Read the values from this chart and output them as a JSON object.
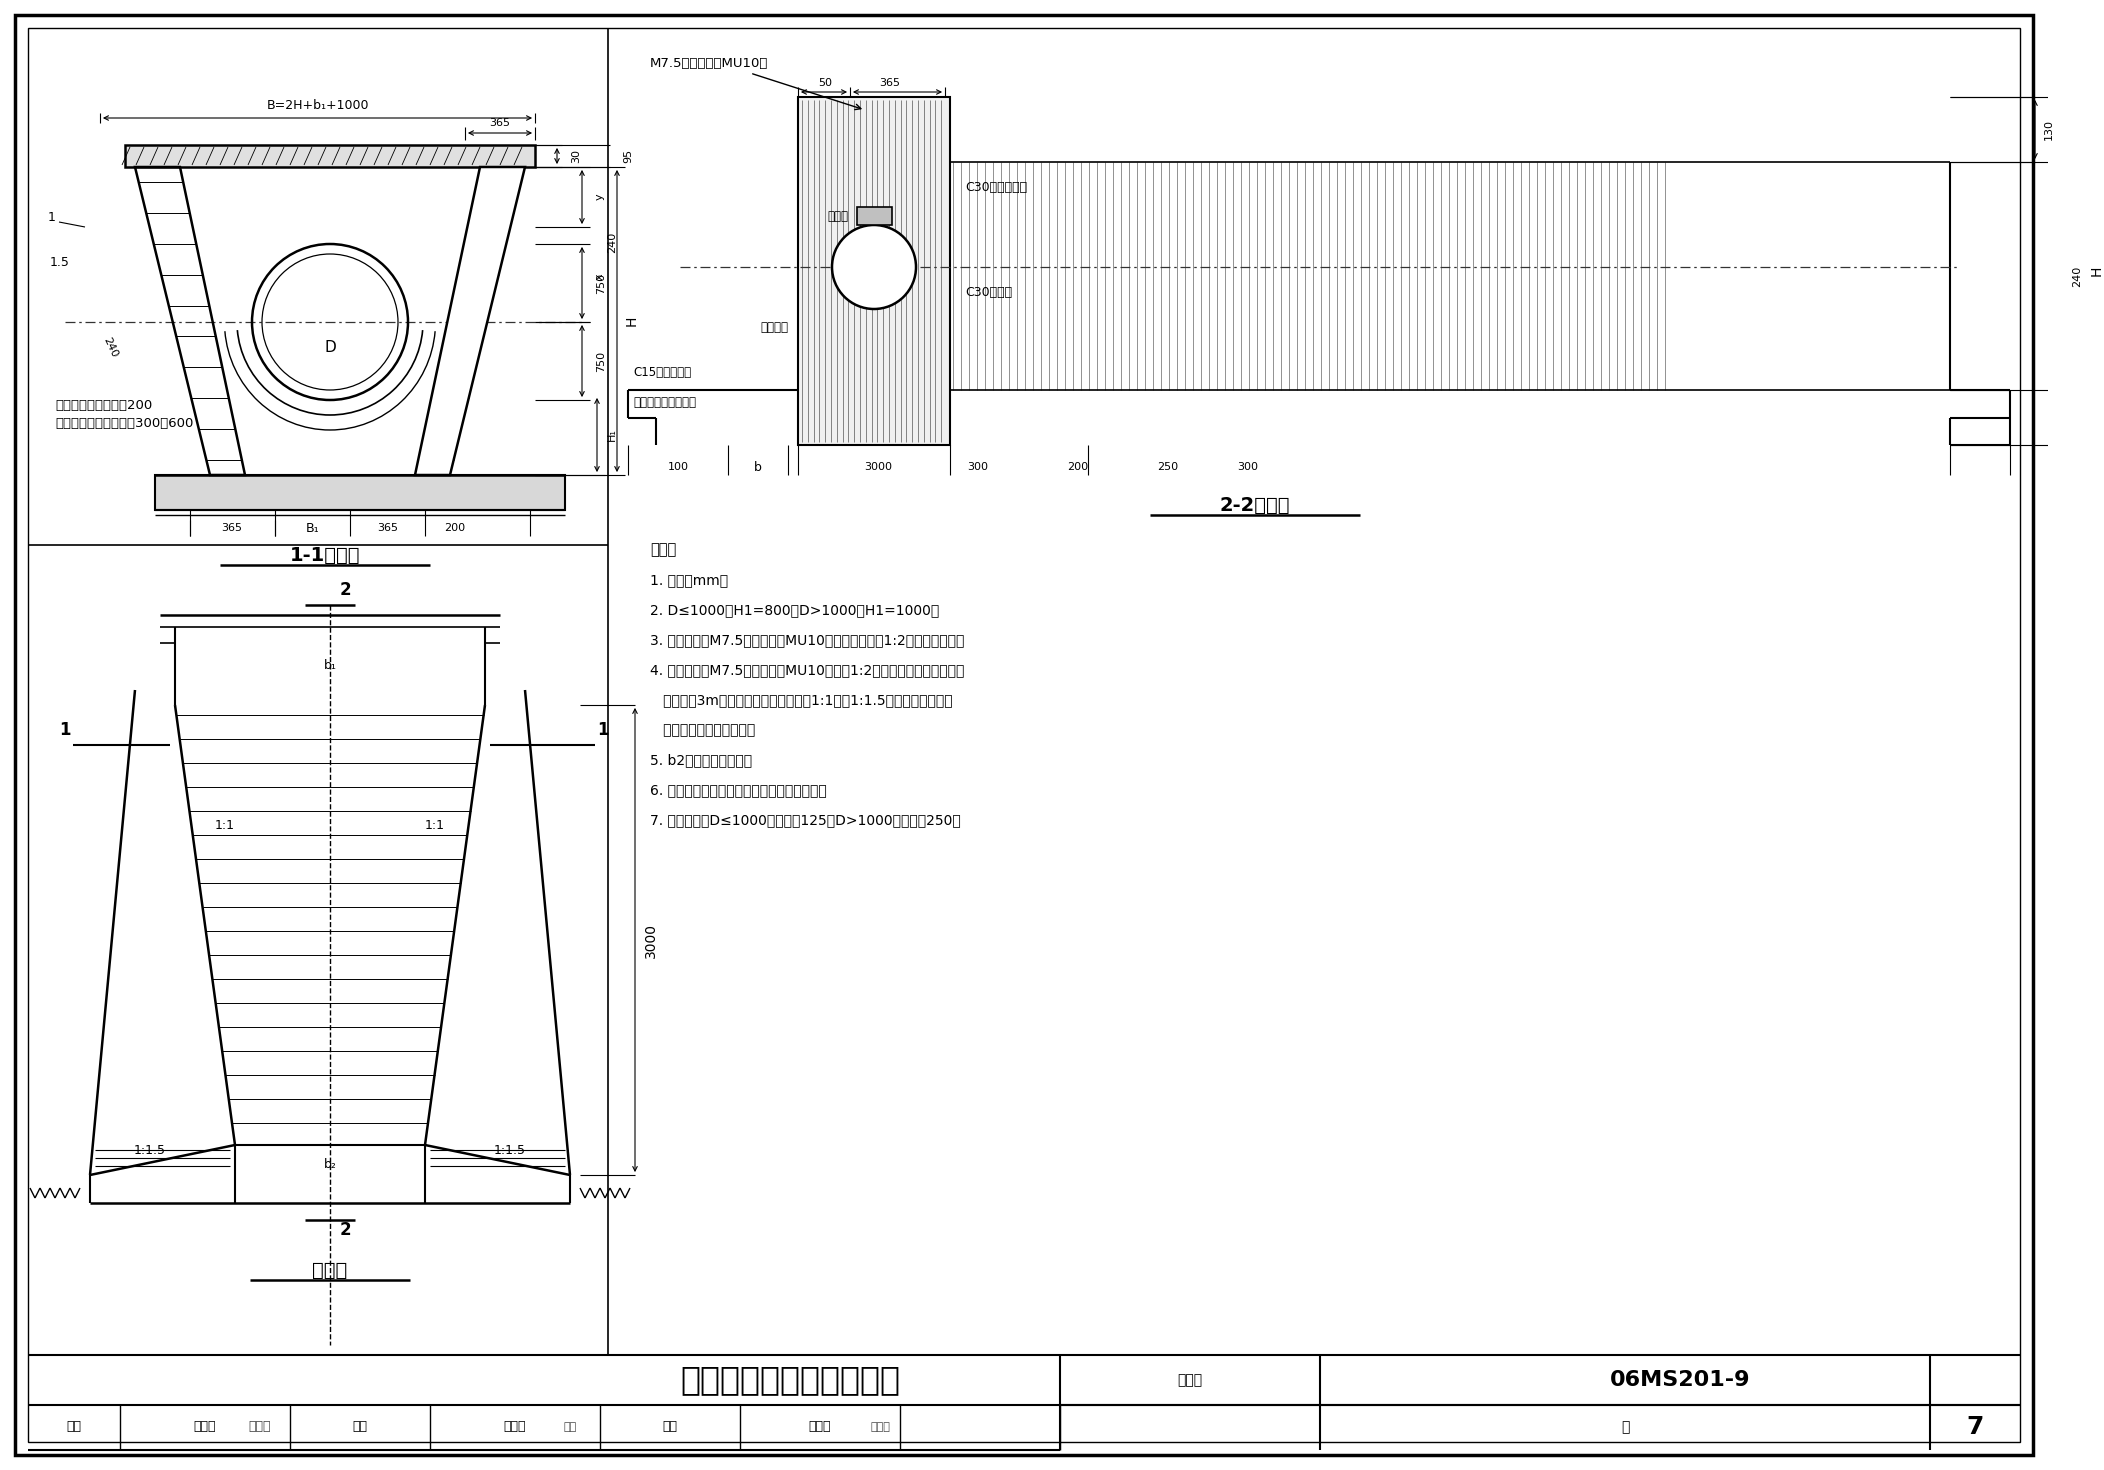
{
  "title": "一字式管道出水口（砖）",
  "drawing_number": "06MS201-9",
  "page": "7",
  "notes": [
    "说明：",
    "1. 单位：mm。",
    "2. D≤1000，H1=800；D>1000，H1=1000。",
    "3. 一字翼墙用M7.5水泥砂浆砌MU10砖，外露部分用1:2水泥砂浆勾缝。",
    "4. 明渠护砌用M7.5水泥砂浆砌MU10砖，用1:2水泥砂浆勾缝，从出口翼",
    "   墙处开始3m长度内为渐变段，边坡由1:1变为1:1.5，如明渠为其他坡",
    "   度时，按明渠坡度渐变。",
    "5. b2为下游明渠底宽。",
    "6. 本图仅适用于下游河渠为经常无水的情况。",
    "7. 管顶砖砌碳D≤1000时，碳高125；D>1000时，碳高250。"
  ],
  "caption_11": "1-1剖面图",
  "caption_22": "2-2剖面图",
  "caption_plan": "平面图",
  "bg_color": "#ffffff",
  "line_color": "#000000"
}
